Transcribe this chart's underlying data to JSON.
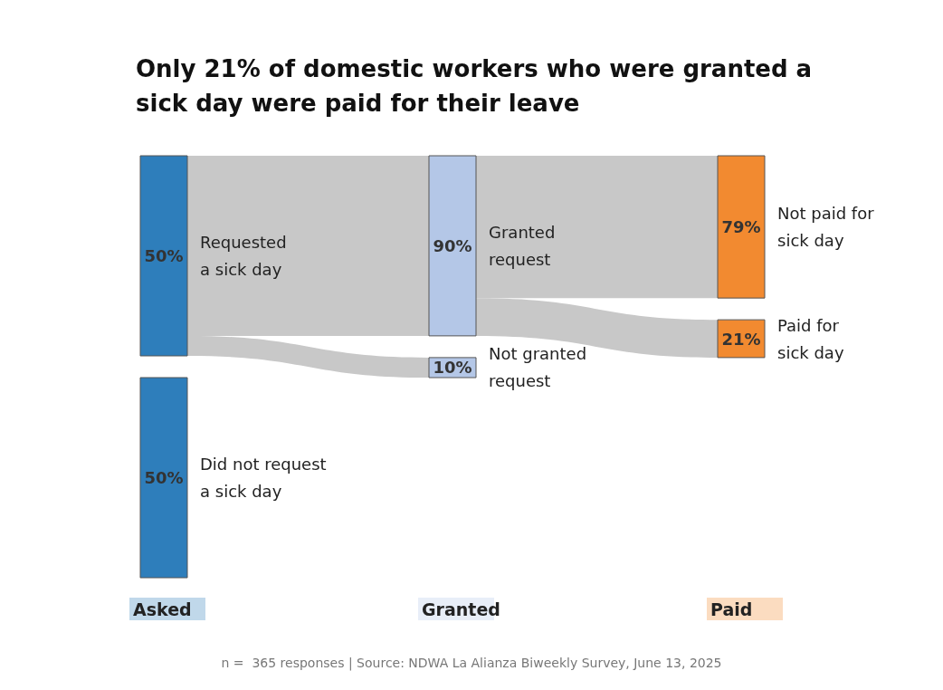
{
  "chart_data": {
    "type": "other",
    "title": "Only 21% of domestic workers who were granted a\nsick day were paid for their leave",
    "categories": [
      "Asked",
      "Granted",
      "Paid"
    ],
    "series": [
      {
        "name": "Requested\na sick day",
        "color": "#2e7ebb",
        "values": [
          50,
          null,
          null
        ],
        "value_labels": [
          "50%",
          null,
          null
        ]
      },
      {
        "name": "Did not request\na sick day",
        "color": "#2e7ebb",
        "values": [
          50,
          null,
          null
        ],
        "value_labels": [
          "50%",
          null,
          null
        ]
      },
      {
        "name": "Granted\nrequest",
        "color": "#b4c7e7",
        "values": [
          null,
          90,
          null
        ],
        "value_labels": [
          null,
          "90%",
          null
        ]
      },
      {
        "name": "Not granted\nrequest",
        "color": "#b4c7e7",
        "values": [
          null,
          10,
          null
        ],
        "value_labels": [
          null,
          "10%",
          null
        ]
      },
      {
        "name": "Not paid for\nsick day",
        "color": "#f28a30",
        "values": [
          null,
          null,
          79
        ],
        "value_labels": [
          null,
          null,
          "79%"
        ]
      },
      {
        "name": "Paid for\nsick day",
        "color": "#f28a30",
        "values": [
          null,
          null,
          21
        ],
        "value_labels": [
          null,
          null,
          "21%"
        ]
      }
    ],
    "annotations": [
      "n =  365 responses | Source: NDWA La Alianza Biweekly Survey, June 13, 2025"
    ]
  }
}
